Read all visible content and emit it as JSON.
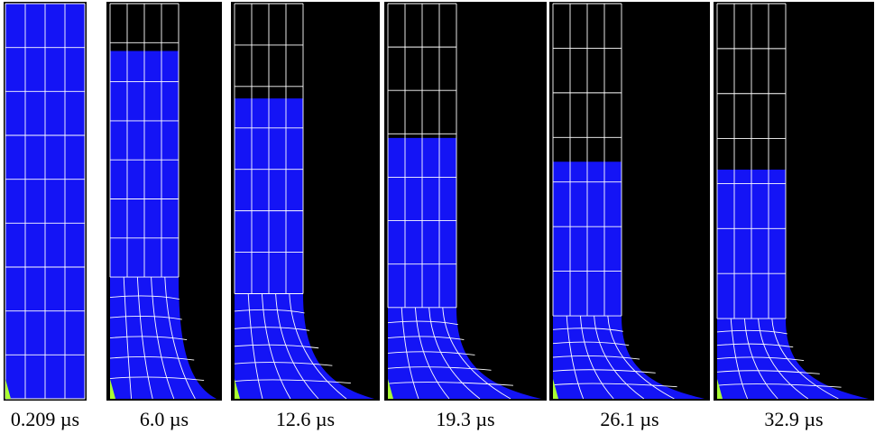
{
  "figure": {
    "colors": {
      "background": "#000000",
      "material": "#1414f5",
      "mesh": "#ffffff",
      "anvil": "#aaff33",
      "frame": "#2a2a2a",
      "caption_text": "#000000"
    },
    "initial_length_fraction": 1.0,
    "frames": [
      {
        "time_label": "0.209 µs",
        "undeformed_fraction": 1.0,
        "mushroom_fraction": 0.0
      },
      {
        "time_label": "6.0 µs",
        "undeformed_fraction": 0.88,
        "mushroom_fraction": 0.35
      },
      {
        "time_label": "12.6 µs",
        "undeformed_fraction": 0.76,
        "mushroom_fraction": 0.35
      },
      {
        "time_label": "19.3 µs",
        "undeformed_fraction": 0.66,
        "mushroom_fraction": 0.35
      },
      {
        "time_label": "26.1 µs",
        "undeformed_fraction": 0.6,
        "mushroom_fraction": 0.35
      },
      {
        "time_label": "32.9 µs",
        "undeformed_fraction": 0.58,
        "mushroom_fraction": 0.35
      }
    ]
  }
}
